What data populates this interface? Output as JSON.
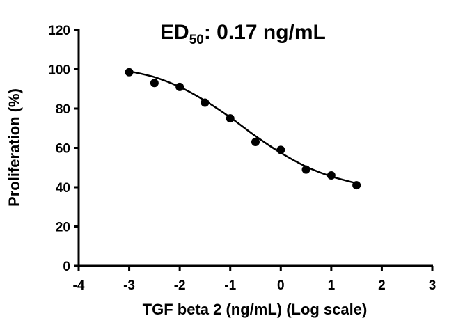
{
  "chart_data": {
    "type": "scatter",
    "title_main": "ED",
    "title_subscript": "50",
    "title_rest": ": 0.17 ng/mL",
    "xlabel": "TGF beta 2 (ng/mL) (Log scale)",
    "ylabel": "Proliferation (%)",
    "xlim": [
      -4,
      3
    ],
    "ylim": [
      0,
      120
    ],
    "x_ticks": [
      -4,
      -3,
      -2,
      -1,
      0,
      1,
      2,
      3
    ],
    "y_ticks": [
      0,
      20,
      40,
      60,
      80,
      100,
      120
    ],
    "x_tick_labels": [
      "-4",
      "-3",
      "-2",
      "-1",
      "0",
      "1",
      "2",
      "3"
    ],
    "y_tick_labels": [
      "0",
      "20",
      "40",
      "60",
      "80",
      "100",
      "120"
    ],
    "grid": false,
    "series": [
      {
        "points": [
          {
            "x": -3.0,
            "y": 98.5
          },
          {
            "x": -2.5,
            "y": 93.0
          },
          {
            "x": -2.0,
            "y": 91.0
          },
          {
            "x": -1.5,
            "y": 83.0
          },
          {
            "x": -1.0,
            "y": 75.0
          },
          {
            "x": -0.5,
            "y": 63.0
          },
          {
            "x": 0.0,
            "y": 59.0
          },
          {
            "x": 0.5,
            "y": 49.0
          },
          {
            "x": 1.0,
            "y": 46.0
          },
          {
            "x": 1.5,
            "y": 41.0
          }
        ],
        "color": "#000000"
      }
    ],
    "fit_curve": {
      "x_range": [
        -3.0,
        1.5
      ],
      "points": [
        {
          "x": -3.0,
          "y": 99.0
        },
        {
          "x": -2.5,
          "y": 96.0
        },
        {
          "x": -2.0,
          "y": 91.0
        },
        {
          "x": -1.5,
          "y": 84.0
        },
        {
          "x": -1.0,
          "y": 75.5
        },
        {
          "x": -0.5,
          "y": 66.0
        },
        {
          "x": 0.0,
          "y": 57.5
        },
        {
          "x": 0.5,
          "y": 50.5
        },
        {
          "x": 1.0,
          "y": 45.5
        },
        {
          "x": 1.5,
          "y": 42.0
        }
      ],
      "color": "#000000"
    }
  }
}
